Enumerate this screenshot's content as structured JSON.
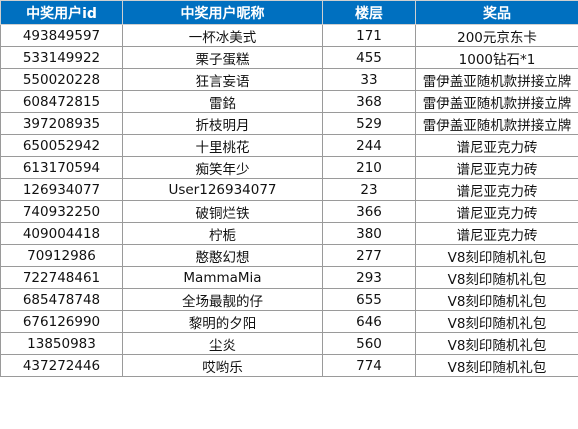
{
  "table": {
    "headers": [
      "中奖用户id",
      "中奖用户昵称",
      "楼层",
      "奖品"
    ],
    "rows": [
      [
        "493849597",
        "一杯冰美式",
        "171",
        "200元京东卡"
      ],
      [
        "533149922",
        "栗子蛋糕",
        "455",
        "1000钻石*1"
      ],
      [
        "550020228",
        "狂言妄语",
        "33",
        "雷伊盖亚随机款拼接立牌"
      ],
      [
        "608472815",
        "雷銘",
        "368",
        "雷伊盖亚随机款拼接立牌"
      ],
      [
        "397208935",
        "折枝明月",
        "529",
        "雷伊盖亚随机款拼接立牌"
      ],
      [
        "650052942",
        "十里桃花",
        "244",
        "谱尼亚克力砖"
      ],
      [
        "613170594",
        "痴笑年少",
        "210",
        "谱尼亚克力砖"
      ],
      [
        "126934077",
        "User126934077",
        "23",
        "谱尼亚克力砖"
      ],
      [
        "740932250",
        "破铜烂铁",
        "366",
        "谱尼亚克力砖"
      ],
      [
        "409004418",
        "柠栀",
        "380",
        "谱尼亚克力砖"
      ],
      [
        "70912986",
        "憨憨幻想",
        "277",
        "V8刻印随机礼包"
      ],
      [
        "722748461",
        "MammaMia",
        "293",
        "V8刻印随机礼包"
      ],
      [
        "685478748",
        "全场最靓的仔",
        "655",
        "V8刻印随机礼包"
      ],
      [
        "676126990",
        "黎明的夕阳",
        "646",
        "V8刻印随机礼包"
      ],
      [
        "13850983",
        "尘炎",
        "560",
        "V8刻印随机礼包"
      ],
      [
        "437272446",
        "哎哟乐",
        "774",
        "V8刻印随机礼包"
      ]
    ]
  },
  "colors": {
    "header_bg": "#0070c0",
    "header_text": "#ffffff",
    "grid": "#9a9a9a"
  }
}
